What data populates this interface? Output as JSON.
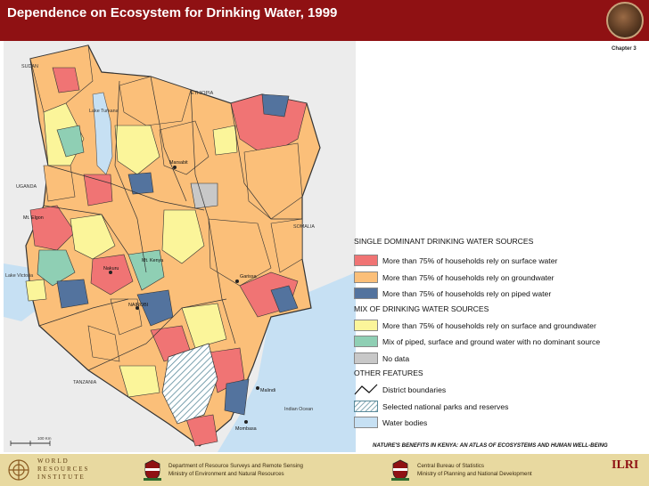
{
  "header": {
    "title": "Dependence on Ecosystem for Drinking Water, 1999",
    "chapter": "Chapter 3"
  },
  "map": {
    "labels": {
      "sudan": "SUDAN",
      "ethiopia": "ETHIOPIA",
      "lake_turkana": "Lake Turkana",
      "uganda": "UGANDA",
      "marsabit": "Marsabit",
      "somalia": "SOMALIA",
      "mt_elgon": "Mt. Elgon",
      "lake_victoria": "Lake Victoria",
      "nakuru": "Nakuru",
      "mt_kenya": "Mt. Kenya",
      "nairobi": "NAIROBI",
      "garissa": "Garissa",
      "tanzania": "TANZANIA",
      "malindi": "Malindi",
      "indian_ocean": "Indian Ocean",
      "mombasa": "Mombasa",
      "scale": "100 Km"
    },
    "colors": {
      "surface": "#f07474",
      "ground": "#fbbf79",
      "piped": "#53739e",
      "mix_sg": "#fbf59a",
      "mix_all": "#8fcfb4",
      "nodata": "#c8c8c8",
      "water": "#c6e0f3",
      "outside": "#ececec"
    }
  },
  "legend": {
    "single_heading": "SINGLE DOMINANT DRINKING WATER SOURCES",
    "mix_heading": "MIX OF DRINKING WATER SOURCES",
    "other_heading": "OTHER FEATURES",
    "items": [
      {
        "label": "More than 75% of households rely on surface water",
        "color": "#f07474"
      },
      {
        "label": "More than 75% of households rely on groundwater",
        "color": "#fbbf79"
      },
      {
        "label": "More than 75% of households rely on piped water",
        "color": "#53739e"
      },
      {
        "label": "More than 75% of households rely on surface and groundwater",
        "color": "#fbf59a"
      },
      {
        "label": "Mix of piped, surface and ground water with no dominant source",
        "color": "#8fcfb4"
      },
      {
        "label": "No data",
        "color": "#c8c8c8"
      },
      {
        "label": "District boundaries",
        "color": ""
      },
      {
        "label": "Selected national parks and reserves",
        "color": ""
      },
      {
        "label": "Water bodies",
        "color": "#c6e0f3"
      }
    ]
  },
  "footer": {
    "atlas_title": "NATURE'S BENEFITS IN KENYA: AN ATLAS OF ECOSYSTEMS AND HUMAN WELL-BEING",
    "wri_line1": "WORLD",
    "wri_line2": "RESOURCES",
    "wri_line3": "INSTITUTE",
    "dept1_line1": "Department of Resource Surveys and Remote Sensing",
    "dept1_line2": "Ministry of Environment and Natural Resources",
    "dept2_line1": "Central Bureau of Statistics",
    "dept2_line2": "Ministry of Planning and National Development",
    "ilri": "ILRI"
  }
}
